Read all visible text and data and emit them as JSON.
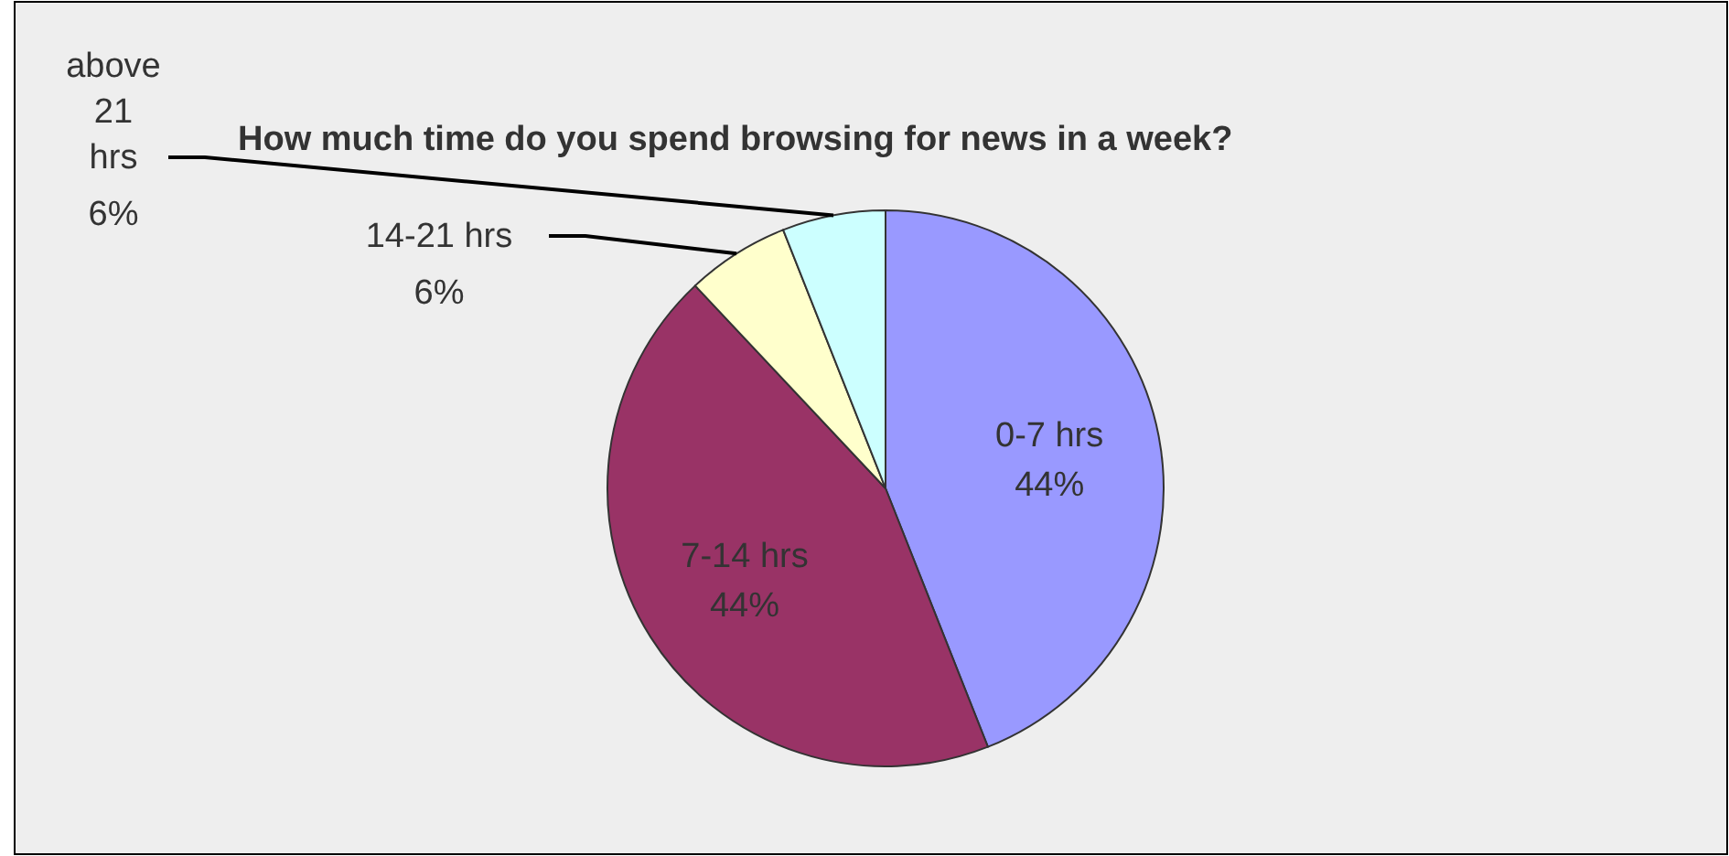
{
  "chart_data": {
    "type": "pie",
    "title": "How much time do you spend browsing for news in a week?",
    "categories": [
      "0-7 hrs",
      "7-14 hrs",
      "14-21 hrs",
      "above 21 hrs"
    ],
    "values": [
      44,
      44,
      6,
      6
    ],
    "value_labels": [
      "44%",
      "44%",
      "6%",
      "6%"
    ],
    "colors": [
      "#9999ff",
      "#993366",
      "#ffffcc",
      "#ccffff"
    ]
  }
}
